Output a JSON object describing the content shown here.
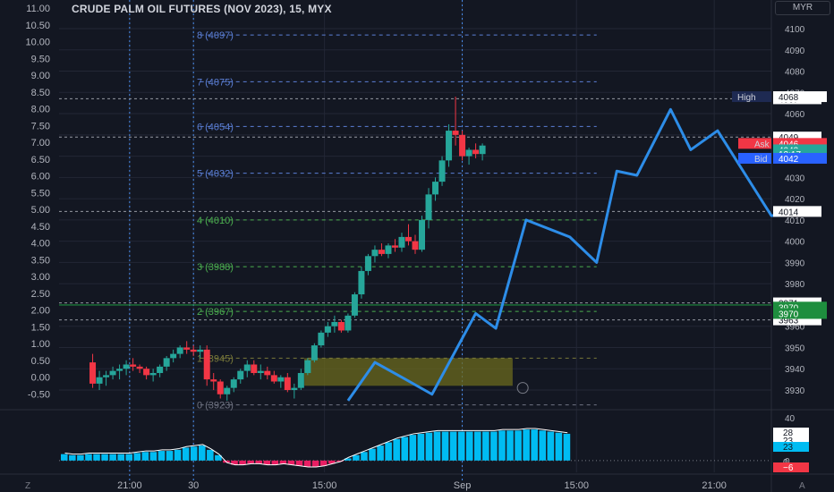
{
  "header": {
    "title": "CRUDE PALM OIL FUTURES (NOV 2023), 15, MYX",
    "currency": "MYR"
  },
  "footer": {
    "zoom_label": "Z",
    "auto_label": "A"
  },
  "colors": {
    "bg": "#131722",
    "grid": "#232735",
    "up": "#26a69a",
    "down": "#f23645",
    "wave": "#2d8de8",
    "fib_blue": "#5b7fd6",
    "fib_green": "#4caf50",
    "zone": "#6b6a1e",
    "hist": "#00bcf2",
    "hist_neg": "#e91e63",
    "text": "#b2b5be"
  },
  "chart_data": {
    "type": "candlestick",
    "title": "CRUDE PALM OIL FUTURES (NOV 2023), 15, MYX",
    "right_axis": {
      "ticks": [
        4100,
        4090,
        4080,
        4070,
        4060,
        4050,
        4040,
        4030,
        4020,
        4010,
        4000,
        3990,
        3980,
        3970,
        3960,
        3950,
        3940,
        3930
      ]
    },
    "left_axis": {
      "ticks": [
        "11.00",
        "10.50",
        "10.00",
        "9.50",
        "9.00",
        "8.50",
        "8.00",
        "7.50",
        "7.00",
        "6.50",
        "6.00",
        "5.50",
        "5.00",
        "4.50",
        "4.00",
        "3.50",
        "3.00",
        "2.50",
        "2.00",
        "1.50",
        "1.00",
        "0.50",
        "0.00",
        "-0.50"
      ]
    },
    "time_axis": {
      "labels": [
        {
          "t": 21,
          "text": "21:00"
        },
        {
          "t": 40,
          "text": "30"
        },
        {
          "t": 79,
          "text": "15:00"
        },
        {
          "t": 120,
          "text": "Sep"
        },
        {
          "t": 154,
          "text": "15:00"
        },
        {
          "t": 195,
          "text": "21:00"
        }
      ],
      "t_min": 0,
      "t_max": 212
    },
    "vertical_markers": [
      21,
      40,
      120
    ],
    "fib_levels": [
      {
        "label": "8 (4097)",
        "price": 4097,
        "color": "blue"
      },
      {
        "label": "7 (4075)",
        "price": 4075,
        "color": "blue"
      },
      {
        "label": "6 (4054)",
        "price": 4054,
        "color": "blue"
      },
      {
        "label": "5 (4032)",
        "price": 4032,
        "color": "blue"
      },
      {
        "label": "4 (4010)",
        "price": 4010,
        "color": "green"
      },
      {
        "label": "3 (3988)",
        "price": 3988,
        "color": "green"
      },
      {
        "label": "2 (3967)",
        "price": 3967,
        "color": "green"
      },
      {
        "label": "1 (3945)",
        "price": 3945,
        "color": "olive"
      },
      {
        "label": "0 (3923)",
        "price": 3923,
        "color": "gray"
      }
    ],
    "price_lines": [
      {
        "price": 4067,
        "label": "4067",
        "style": "white"
      },
      {
        "price": 4049,
        "label": "4049",
        "style": "white"
      },
      {
        "price": 4014,
        "label": "4014",
        "style": "white"
      },
      {
        "price": 3971,
        "label": "3971",
        "style": "white"
      },
      {
        "price": 3963,
        "label": "3963",
        "style": "white"
      }
    ],
    "badges": [
      {
        "price": 4068,
        "tag": "High",
        "value": "4068",
        "tag_bg": "#1e2a52",
        "value_bg": "#ffffff",
        "value_fg": "#131722"
      },
      {
        "price": 4046,
        "tag": "Ask",
        "value": "4046",
        "tag_bg": "#f23645",
        "value_bg": "#f23645",
        "value_fg": "#ffffff"
      },
      {
        "price": 4043,
        "tag": "",
        "value": "4043",
        "tag_bg": "",
        "value_bg": "#26a69a",
        "value_fg": "#ffffff"
      },
      {
        "price": 4041,
        "tag": "",
        "value": "12:17",
        "tag_bg": "",
        "value_bg": "#26a69a",
        "value_fg": "#ffffff"
      },
      {
        "price": 4039,
        "tag": "Bid",
        "value": "4042",
        "tag_bg": "#2962ff",
        "value_bg": "#2962ff",
        "value_fg": "#ffffff"
      },
      {
        "price": 3969,
        "tag": "",
        "value": "3970",
        "tag_bg": "",
        "value_bg": "#1e8e3e",
        "value_fg": "#ffffff"
      },
      {
        "price": 3966,
        "tag": "",
        "value": "3970",
        "tag_bg": "",
        "value_bg": "#1e8e3e",
        "value_fg": "#ffffff"
      }
    ],
    "green_line_price": 3970,
    "zone": {
      "t_start": 73,
      "t_end": 135,
      "p_top": 3945,
      "p_bottom": 3932
    },
    "wave": [
      [
        86,
        3925
      ],
      [
        94,
        3943
      ],
      [
        102,
        3936
      ],
      [
        111,
        3928
      ],
      [
        124,
        3966
      ],
      [
        130,
        3959
      ],
      [
        139,
        4010
      ],
      [
        152,
        4002
      ],
      [
        160,
        3990
      ],
      [
        166,
        4033
      ],
      [
        172,
        4031
      ],
      [
        182,
        4062
      ],
      [
        188,
        4043
      ],
      [
        196,
        4052
      ],
      [
        212,
        4012
      ],
      [
        223,
        4013
      ]
    ],
    "candles": [
      [
        10,
        3943,
        3947,
        3931,
        3933
      ],
      [
        12,
        3933,
        3939,
        3930,
        3936
      ],
      [
        14,
        3936,
        3939,
        3932,
        3937
      ],
      [
        16,
        3937,
        3941,
        3935,
        3939
      ],
      [
        18,
        3939,
        3942,
        3935,
        3940
      ],
      [
        20,
        3940,
        3944,
        3937,
        3942
      ],
      [
        22,
        3942,
        3945,
        3939,
        3941
      ],
      [
        24,
        3941,
        3942,
        3938,
        3940
      ],
      [
        26,
        3940,
        3941,
        3935,
        3937
      ],
      [
        28,
        3937,
        3940,
        3934,
        3938
      ],
      [
        30,
        3938,
        3942,
        3936,
        3941
      ],
      [
        32,
        3941,
        3946,
        3939,
        3945
      ],
      [
        34,
        3945,
        3949,
        3943,
        3947
      ],
      [
        36,
        3947,
        3951,
        3945,
        3950
      ],
      [
        38,
        3950,
        3953,
        3947,
        3949
      ],
      [
        40,
        3949,
        3951,
        3946,
        3948
      ],
      [
        42,
        3948,
        3951,
        3945,
        3949
      ],
      [
        44,
        3949,
        3951,
        3932,
        3935
      ],
      [
        46,
        3935,
        3938,
        3930,
        3934
      ],
      [
        48,
        3934,
        3935,
        3926,
        3928
      ],
      [
        50,
        3928,
        3932,
        3925,
        3931
      ],
      [
        52,
        3931,
        3936,
        3929,
        3935
      ],
      [
        54,
        3935,
        3940,
        3933,
        3939
      ],
      [
        56,
        3939,
        3944,
        3936,
        3942
      ],
      [
        58,
        3942,
        3944,
        3937,
        3938
      ],
      [
        60,
        3938,
        3942,
        3935,
        3939
      ],
      [
        62,
        3939,
        3941,
        3935,
        3937
      ],
      [
        64,
        3937,
        3939,
        3933,
        3934
      ],
      [
        66,
        3934,
        3937,
        3931,
        3936
      ],
      [
        68,
        3936,
        3938,
        3929,
        3930
      ],
      [
        70,
        3930,
        3933,
        3926,
        3931
      ],
      [
        72,
        3931,
        3940,
        3930,
        3938
      ],
      [
        74,
        3938,
        3945,
        3937,
        3944
      ],
      [
        76,
        3944,
        3952,
        3943,
        3951
      ],
      [
        78,
        3951,
        3958,
        3950,
        3957
      ],
      [
        80,
        3957,
        3962,
        3955,
        3960
      ],
      [
        82,
        3960,
        3965,
        3957,
        3962
      ],
      [
        84,
        3962,
        3963,
        3957,
        3958
      ],
      [
        86,
        3958,
        3966,
        3957,
        3965
      ],
      [
        88,
        3965,
        3976,
        3964,
        3975
      ],
      [
        90,
        3975,
        3988,
        3973,
        3986
      ],
      [
        92,
        3986,
        3994,
        3984,
        3993
      ],
      [
        94,
        3993,
        3998,
        3990,
        3996
      ],
      [
        96,
        3996,
        3999,
        3993,
        3994
      ],
      [
        98,
        3994,
        3999,
        3992,
        3998
      ],
      [
        100,
        3998,
        4001,
        3995,
        3997
      ],
      [
        102,
        3997,
        4004,
        3995,
        4002
      ],
      [
        104,
        4002,
        4008,
        3998,
        4000
      ],
      [
        106,
        4000,
        4003,
        3994,
        3996
      ],
      [
        108,
        3996,
        4012,
        3995,
        4010
      ],
      [
        110,
        4010,
        4025,
        4006,
        4022
      ],
      [
        112,
        4022,
        4030,
        4019,
        4028
      ],
      [
        114,
        4028,
        4040,
        4026,
        4038
      ],
      [
        116,
        4038,
        4055,
        4035,
        4052
      ],
      [
        118,
        4052,
        4068,
        4045,
        4050
      ],
      [
        120,
        4050,
        4052,
        4038,
        4040
      ],
      [
        122,
        4040,
        4044,
        4036,
        4043
      ],
      [
        124,
        4043,
        4046,
        4039,
        4041
      ],
      [
        126,
        4041,
        4046,
        4038,
        4045
      ]
    ],
    "indicator": {
      "range": [
        -8,
        42
      ],
      "ticks": [
        40,
        20,
        0
      ],
      "histogram": [
        6,
        5,
        5,
        6,
        6,
        6,
        6,
        6,
        6,
        7,
        8,
        8,
        9,
        9,
        10,
        12,
        13,
        14,
        10,
        5,
        -2,
        -4,
        -4,
        -3,
        -3,
        -4,
        -4,
        -3,
        -4,
        -5,
        -6,
        -6,
        -5,
        -3,
        -1,
        2,
        5,
        8,
        11,
        14,
        17,
        20,
        22,
        24,
        25,
        26,
        27,
        27,
        27,
        27,
        27,
        27,
        27,
        27,
        28,
        28,
        28,
        29,
        29,
        28,
        27,
        26,
        25
      ],
      "badges": [
        {
          "value": "28",
          "style": "white"
        },
        {
          "value": "23",
          "style": "white"
        },
        {
          "value": "23",
          "style": "cyan"
        },
        {
          "value": "0",
          "style": "plain"
        },
        {
          "value": "−6",
          "style": "red"
        }
      ]
    }
  }
}
